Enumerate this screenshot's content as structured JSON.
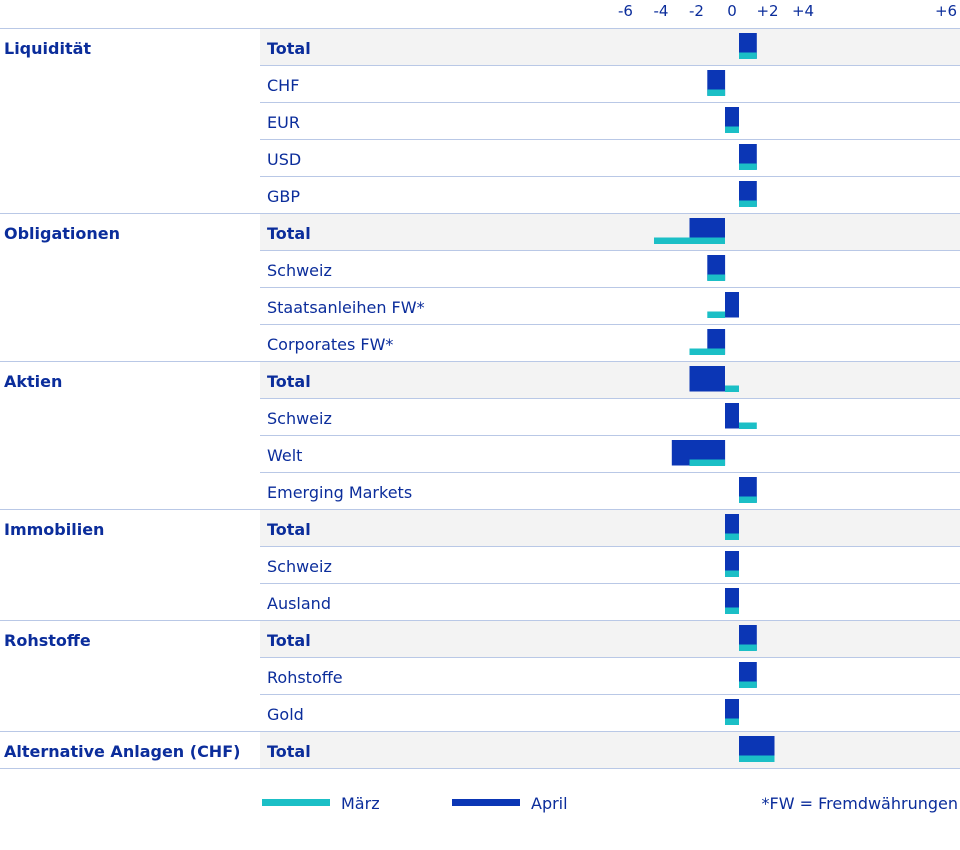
{
  "chart_data": {
    "type": "bar",
    "orientation": "horizontal",
    "x_ticks": [
      "-6",
      "-4",
      "-2",
      "0",
      "+2",
      "+4",
      "+6"
    ],
    "xlim": [
      -6,
      6
    ],
    "series_style": [
      {
        "name": "März",
        "color": "#1bbfc6"
      },
      {
        "name": "April",
        "color": "#0b36b5"
      }
    ],
    "groups": [
      {
        "name": "Liquidität",
        "rows": [
          {
            "label": "Total",
            "total": true,
            "maerz": 1,
            "april": 1
          },
          {
            "label": "CHF",
            "total": false,
            "maerz": -1,
            "april": -1
          },
          {
            "label": "EUR",
            "total": false,
            "maerz": 0,
            "april": 0
          },
          {
            "label": "USD",
            "total": false,
            "maerz": 1,
            "april": 1
          },
          {
            "label": "GBP",
            "total": false,
            "maerz": 1,
            "april": 1
          }
        ]
      },
      {
        "name": "Obligationen",
        "rows": [
          {
            "label": "Total",
            "total": true,
            "maerz": -4,
            "april": -2
          },
          {
            "label": "Schweiz",
            "total": false,
            "maerz": -1,
            "april": -1
          },
          {
            "label": "Staatsanleihen FW*",
            "total": false,
            "maerz": -1,
            "april": 0
          },
          {
            "label": "Corporates FW*",
            "total": false,
            "maerz": -2,
            "april": -1
          }
        ]
      },
      {
        "name": "Aktien",
        "rows": [
          {
            "label": "Total",
            "total": true,
            "maerz": 0,
            "april": -2
          },
          {
            "label": "Schweiz",
            "total": false,
            "maerz": 1,
            "april": 0
          },
          {
            "label": "Welt",
            "total": false,
            "maerz": -2,
            "april": -3
          },
          {
            "label": "Emerging Markets",
            "total": false,
            "maerz": 1,
            "april": 1
          }
        ]
      },
      {
        "name": "Immobilien",
        "rows": [
          {
            "label": "Total",
            "total": true,
            "maerz": 0,
            "april": 0
          },
          {
            "label": "Schweiz",
            "total": false,
            "maerz": 0,
            "april": 0
          },
          {
            "label": "Ausland",
            "total": false,
            "maerz": 0,
            "april": 0
          }
        ]
      },
      {
        "name": "Rohstoffe",
        "rows": [
          {
            "label": "Total",
            "total": true,
            "maerz": 1,
            "april": 1
          },
          {
            "label": "Rohstoffe",
            "total": false,
            "maerz": 1,
            "april": 1
          },
          {
            "label": "Gold",
            "total": false,
            "maerz": 0,
            "april": 0
          }
        ]
      },
      {
        "name": "Alternative Anlagen (CHF)",
        "rows": [
          {
            "label": "Total",
            "total": true,
            "maerz": 2,
            "april": 2
          }
        ]
      }
    ],
    "legend": {
      "placement": "bottom",
      "items": [
        {
          "name": "März",
          "color": "#1bbfc6"
        },
        {
          "name": "April",
          "color": "#0b36b5"
        }
      ]
    },
    "footnote": "*FW = Fremdwährungen"
  }
}
